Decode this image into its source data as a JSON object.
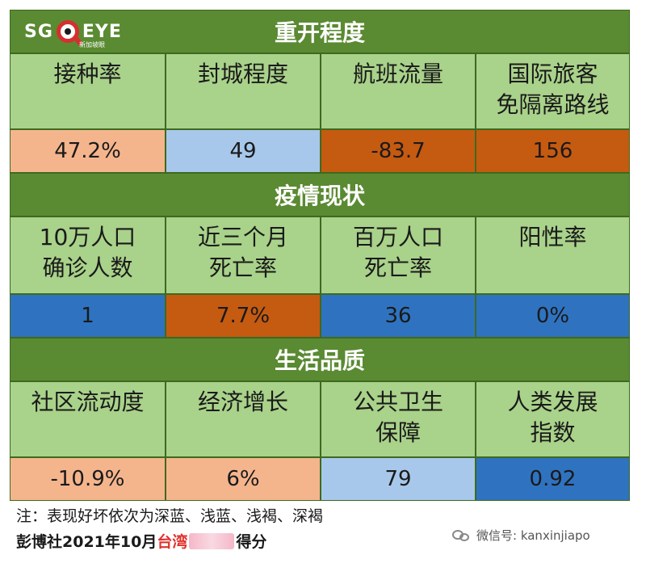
{
  "logo": {
    "sg": "SG",
    "eye": "EYE",
    "sub": "新加坡眼"
  },
  "colors": {
    "header_green": "#5a8a32",
    "label_green": "#a9d28a",
    "dark_blue": "#2f73c0",
    "light_blue": "#a7c8ea",
    "light_brown": "#f4b58d",
    "dark_brown": "#c55a11"
  },
  "sections": [
    {
      "title": "重开程度",
      "labels": [
        "接种率",
        "封城程度",
        "航班流量",
        "国际旅客\n免隔离路线"
      ],
      "values": [
        "47.2%",
        "49",
        "-83.7",
        "156"
      ],
      "value_colors": [
        "#f4b58d",
        "#a7c8ea",
        "#c55a11",
        "#c55a11"
      ]
    },
    {
      "title": "疫情现状",
      "labels": [
        "10万人口\n确诊人数",
        "近三个月\n死亡率",
        "百万人口\n死亡率",
        "阳性率"
      ],
      "values": [
        "1",
        "7.7%",
        "36",
        "0%"
      ],
      "value_colors": [
        "#2f73c0",
        "#c55a11",
        "#2f73c0",
        "#2f73c0"
      ]
    },
    {
      "title": "生活品质",
      "labels": [
        "社区流动度",
        "经济增长",
        "公共卫生\n保障",
        "人类发展\n指数"
      ],
      "values": [
        "-10.9%",
        "6%",
        "79",
        "0.92"
      ],
      "value_colors": [
        "#f4b58d",
        "#f4b58d",
        "#a7c8ea",
        "#2f73c0"
      ]
    }
  ],
  "note": "注：表现好坏依次为深蓝、浅蓝、浅褐、深褐",
  "credit": {
    "prefix": "彭博社2021年10月",
    "place": "台湾",
    "suffix": "得分"
  },
  "wechat": "微信号: kanxinjiapo"
}
